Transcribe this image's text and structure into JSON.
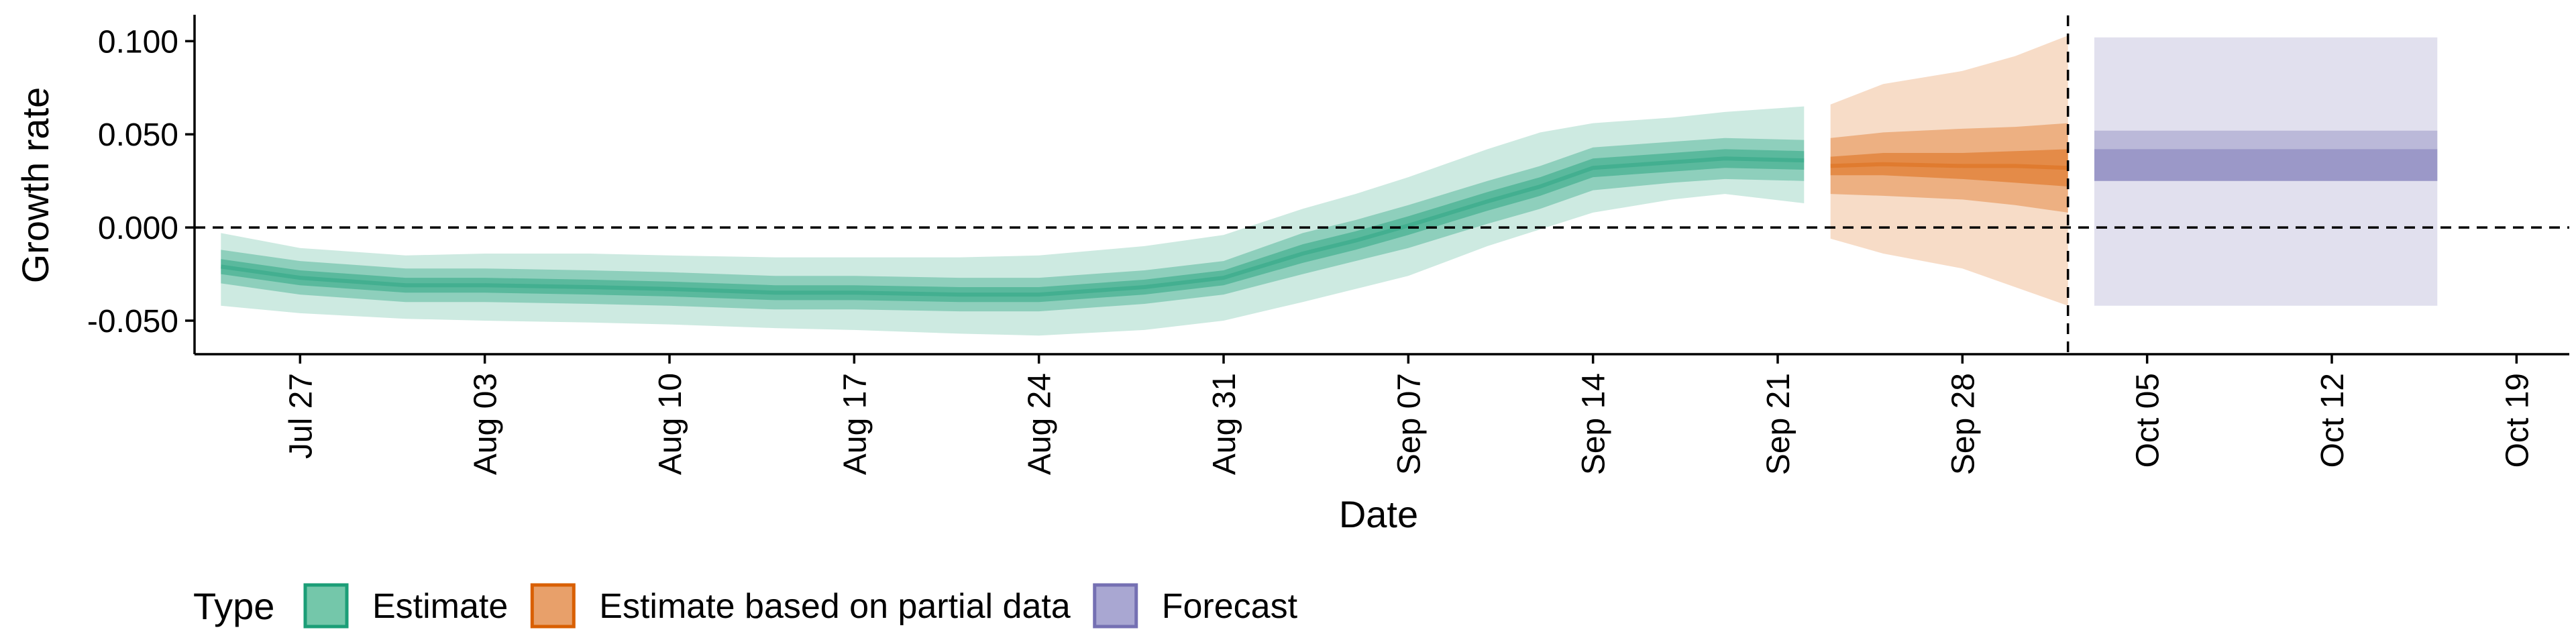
{
  "chart_data": {
    "type": "area",
    "xlabel": "Date",
    "ylabel": "Growth rate",
    "xlim": [
      "2020-07-23",
      "2020-10-21"
    ],
    "ylim": [
      -0.068,
      0.112
    ],
    "x_ticks": [
      {
        "date": "2020-07-27",
        "label": "Jul 27"
      },
      {
        "date": "2020-08-03",
        "label": "Aug 03"
      },
      {
        "date": "2020-08-10",
        "label": "Aug 10"
      },
      {
        "date": "2020-08-17",
        "label": "Aug 17"
      },
      {
        "date": "2020-08-24",
        "label": "Aug 24"
      },
      {
        "date": "2020-08-31",
        "label": "Aug 31"
      },
      {
        "date": "2020-09-07",
        "label": "Sep 07"
      },
      {
        "date": "2020-09-14",
        "label": "Sep 14"
      },
      {
        "date": "2020-09-21",
        "label": "Sep 21"
      },
      {
        "date": "2020-09-28",
        "label": "Sep 28"
      },
      {
        "date": "2020-10-05",
        "label": "Oct 05"
      },
      {
        "date": "2020-10-12",
        "label": "Oct 12"
      },
      {
        "date": "2020-10-19",
        "label": "Oct 19"
      }
    ],
    "y_ticks": [
      {
        "value": 0.1,
        "label": "0.100"
      },
      {
        "value": 0.05,
        "label": "0.050"
      },
      {
        "value": 0.0,
        "label": "0.000"
      },
      {
        "value": -0.05,
        "label": "-0.050"
      }
    ],
    "reference_lines": {
      "horizontal_y": 0.0,
      "vertical_date": "2020-10-02",
      "style": "dashed"
    },
    "grid": false,
    "legend": {
      "title": "Type",
      "position": "bottom-left",
      "items": [
        {
          "label": "Estimate",
          "fill": "#74c7aa",
          "border": "#1b9e77"
        },
        {
          "label": "Estimate based on partial data",
          "fill": "#e8a06a",
          "border": "#d95f02"
        },
        {
          "label": "Forecast",
          "fill": "#a9a7d2",
          "border": "#7570b3"
        }
      ]
    },
    "series": [
      {
        "name": "Estimate",
        "color": "#1b9e77",
        "x": [
          "2020-07-24",
          "2020-07-27",
          "2020-07-31",
          "2020-08-03",
          "2020-08-07",
          "2020-08-10",
          "2020-08-14",
          "2020-08-17",
          "2020-08-21",
          "2020-08-24",
          "2020-08-28",
          "2020-08-31",
          "2020-09-03",
          "2020-09-05",
          "2020-09-07",
          "2020-09-10",
          "2020-09-12",
          "2020-09-14",
          "2020-09-17",
          "2020-09-19",
          "2020-09-22"
        ],
        "median": [
          -0.021,
          -0.027,
          -0.031,
          -0.031,
          -0.032,
          -0.033,
          -0.035,
          -0.035,
          -0.036,
          -0.036,
          -0.032,
          -0.027,
          -0.014,
          -0.007,
          0.001,
          0.014,
          0.022,
          0.032,
          0.035,
          0.037,
          0.036
        ],
        "inner_lower": [
          -0.025,
          -0.031,
          -0.035,
          -0.035,
          -0.036,
          -0.037,
          -0.039,
          -0.039,
          -0.04,
          -0.04,
          -0.036,
          -0.031,
          -0.019,
          -0.012,
          -0.004,
          0.009,
          0.017,
          0.027,
          0.03,
          0.032,
          0.031
        ],
        "inner_upper": [
          -0.017,
          -0.023,
          -0.027,
          -0.027,
          -0.028,
          -0.029,
          -0.031,
          -0.031,
          -0.032,
          -0.032,
          -0.028,
          -0.023,
          -0.009,
          -0.002,
          0.006,
          0.019,
          0.027,
          0.037,
          0.04,
          0.042,
          0.041
        ],
        "mid_lower": [
          -0.03,
          -0.036,
          -0.04,
          -0.04,
          -0.041,
          -0.042,
          -0.044,
          -0.044,
          -0.045,
          -0.045,
          -0.041,
          -0.036,
          -0.025,
          -0.018,
          -0.011,
          0.002,
          0.01,
          0.02,
          0.024,
          0.026,
          0.025
        ],
        "mid_upper": [
          -0.012,
          -0.018,
          -0.022,
          -0.022,
          -0.023,
          -0.024,
          -0.026,
          -0.026,
          -0.027,
          -0.027,
          -0.023,
          -0.018,
          -0.003,
          0.004,
          0.012,
          0.025,
          0.033,
          0.043,
          0.046,
          0.048,
          0.047
        ],
        "outer_lower": [
          -0.042,
          -0.046,
          -0.049,
          -0.05,
          -0.051,
          -0.052,
          -0.054,
          -0.055,
          -0.057,
          -0.058,
          -0.055,
          -0.05,
          -0.04,
          -0.033,
          -0.026,
          -0.01,
          -0.001,
          0.008,
          0.015,
          0.018,
          0.013
        ],
        "outer_upper": [
          -0.003,
          -0.011,
          -0.015,
          -0.014,
          -0.014,
          -0.015,
          -0.016,
          -0.016,
          -0.016,
          -0.015,
          -0.01,
          -0.004,
          0.01,
          0.018,
          0.027,
          0.042,
          0.051,
          0.056,
          0.059,
          0.062,
          0.065
        ]
      },
      {
        "name": "Estimate based on partial data",
        "color": "#d95f02",
        "x": [
          "2020-09-23",
          "2020-09-25",
          "2020-09-28",
          "2020-09-30",
          "2020-10-02"
        ],
        "median": [
          0.033,
          0.034,
          0.033,
          0.033,
          0.032
        ],
        "inner_lower": [
          0.028,
          0.028,
          0.026,
          0.024,
          0.022
        ],
        "inner_upper": [
          0.038,
          0.04,
          0.04,
          0.041,
          0.042
        ],
        "mid_lower": [
          0.018,
          0.017,
          0.015,
          0.012,
          0.008
        ],
        "mid_upper": [
          0.048,
          0.051,
          0.053,
          0.054,
          0.056
        ],
        "outer_lower": [
          -0.006,
          -0.014,
          -0.022,
          -0.032,
          -0.042
        ],
        "outer_upper": [
          0.066,
          0.077,
          0.084,
          0.092,
          0.103
        ]
      },
      {
        "name": "Forecast",
        "color": "#7570b3",
        "x": [
          "2020-10-03",
          "2020-10-16"
        ],
        "median": [
          0.033,
          0.033
        ],
        "inner_lower": [
          0.025,
          0.025
        ],
        "inner_upper": [
          0.042,
          0.042
        ],
        "mid_lower": [
          0.025,
          0.025
        ],
        "mid_upper": [
          0.052,
          0.052
        ],
        "outer_lower": [
          -0.042,
          -0.042
        ],
        "outer_upper": [
          0.102,
          0.102
        ]
      }
    ]
  }
}
